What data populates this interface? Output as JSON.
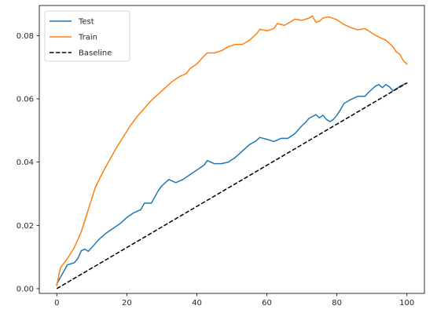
{
  "chart_data": {
    "type": "line",
    "title": "",
    "xlabel": "",
    "ylabel": "",
    "xlim": [
      -5,
      105
    ],
    "ylim": [
      -0.0015,
      0.0895
    ],
    "x_ticks": [
      0,
      20,
      40,
      60,
      80,
      100
    ],
    "y_ticks": [
      0.0,
      0.02,
      0.04,
      0.06,
      0.08
    ],
    "y_tick_labels": [
      "0.00",
      "0.02",
      "0.04",
      "0.06",
      "0.08"
    ],
    "grid": false,
    "legend_position": "upper-left",
    "series": [
      {
        "name": "Test",
        "color": "#1f77b4",
        "style": "solid",
        "points": [
          [
            0,
            0.0015
          ],
          [
            2,
            0.0055
          ],
          [
            3,
            0.0075
          ],
          [
            5,
            0.0082
          ],
          [
            6,
            0.0095
          ],
          [
            7,
            0.012
          ],
          [
            8,
            0.0125
          ],
          [
            9,
            0.0118
          ],
          [
            10,
            0.013
          ],
          [
            12,
            0.0155
          ],
          [
            14,
            0.0175
          ],
          [
            16,
            0.019
          ],
          [
            18,
            0.0205
          ],
          [
            20,
            0.0225
          ],
          [
            22,
            0.024
          ],
          [
            24,
            0.025
          ],
          [
            25,
            0.027
          ],
          [
            27,
            0.027
          ],
          [
            28,
            0.029
          ],
          [
            29,
            0.031
          ],
          [
            30,
            0.0325
          ],
          [
            32,
            0.0345
          ],
          [
            34,
            0.0335
          ],
          [
            36,
            0.0345
          ],
          [
            38,
            0.036
          ],
          [
            40,
            0.0375
          ],
          [
            42,
            0.039
          ],
          [
            43,
            0.0405
          ],
          [
            45,
            0.0395
          ],
          [
            47,
            0.0395
          ],
          [
            49,
            0.04
          ],
          [
            51,
            0.0415
          ],
          [
            53,
            0.0435
          ],
          [
            55,
            0.0455
          ],
          [
            57,
            0.0468
          ],
          [
            58,
            0.0478
          ],
          [
            60,
            0.0472
          ],
          [
            62,
            0.0465
          ],
          [
            64,
            0.0475
          ],
          [
            66,
            0.0475
          ],
          [
            68,
            0.049
          ],
          [
            70,
            0.0515
          ],
          [
            71,
            0.0525
          ],
          [
            72,
            0.0538
          ],
          [
            74,
            0.055
          ],
          [
            75,
            0.054
          ],
          [
            76,
            0.0548
          ],
          [
            77,
            0.0535
          ],
          [
            78,
            0.0528
          ],
          [
            79,
            0.0535
          ],
          [
            80,
            0.0548
          ],
          [
            81,
            0.0565
          ],
          [
            82,
            0.0585
          ],
          [
            84,
            0.0598
          ],
          [
            86,
            0.0608
          ],
          [
            88,
            0.0608
          ],
          [
            89,
            0.062
          ],
          [
            90,
            0.063
          ],
          [
            91,
            0.064
          ],
          [
            92,
            0.0645
          ],
          [
            93,
            0.0635
          ],
          [
            94,
            0.0645
          ],
          [
            95,
            0.0638
          ],
          [
            96,
            0.0625
          ],
          [
            97,
            0.0632
          ],
          [
            98,
            0.064
          ],
          [
            99,
            0.0645
          ],
          [
            100,
            0.065
          ]
        ]
      },
      {
        "name": "Train",
        "color": "#ff7f0e",
        "style": "solid",
        "points": [
          [
            0,
            0.001
          ],
          [
            1,
            0.0065
          ],
          [
            3,
            0.0095
          ],
          [
            5,
            0.013
          ],
          [
            7,
            0.018
          ],
          [
            9,
            0.025
          ],
          [
            11,
            0.032
          ],
          [
            13,
            0.0365
          ],
          [
            15,
            0.0405
          ],
          [
            17,
            0.0445
          ],
          [
            19,
            0.048
          ],
          [
            21,
            0.0515
          ],
          [
            23,
            0.0545
          ],
          [
            25,
            0.057
          ],
          [
            27,
            0.0595
          ],
          [
            29,
            0.0615
          ],
          [
            31,
            0.0635
          ],
          [
            33,
            0.0655
          ],
          [
            35,
            0.067
          ],
          [
            37,
            0.068
          ],
          [
            38,
            0.0695
          ],
          [
            40,
            0.071
          ],
          [
            42,
            0.0735
          ],
          [
            43,
            0.0745
          ],
          [
            45,
            0.0745
          ],
          [
            47,
            0.0752
          ],
          [
            49,
            0.0765
          ],
          [
            51,
            0.0772
          ],
          [
            53,
            0.0772
          ],
          [
            55,
            0.0785
          ],
          [
            57,
            0.0805
          ],
          [
            58,
            0.082
          ],
          [
            60,
            0.0815
          ],
          [
            62,
            0.0822
          ],
          [
            63,
            0.0838
          ],
          [
            65,
            0.0832
          ],
          [
            67,
            0.0845
          ],
          [
            68,
            0.0852
          ],
          [
            70,
            0.0848
          ],
          [
            72,
            0.0855
          ],
          [
            73,
            0.0862
          ],
          [
            74,
            0.0842
          ],
          [
            75,
            0.0845
          ],
          [
            76,
            0.0855
          ],
          [
            77,
            0.0858
          ],
          [
            78,
            0.0858
          ],
          [
            80,
            0.085
          ],
          [
            82,
            0.0835
          ],
          [
            84,
            0.0825
          ],
          [
            86,
            0.0818
          ],
          [
            88,
            0.0822
          ],
          [
            90,
            0.0808
          ],
          [
            92,
            0.0795
          ],
          [
            94,
            0.0785
          ],
          [
            96,
            0.0765
          ],
          [
            97,
            0.0748
          ],
          [
            98,
            0.074
          ],
          [
            99,
            0.072
          ],
          [
            100,
            0.071
          ]
        ]
      },
      {
        "name": "Baseline",
        "color": "#000000",
        "style": "dashed",
        "points": [
          [
            0,
            0.0
          ],
          [
            100,
            0.065
          ]
        ]
      }
    ]
  }
}
